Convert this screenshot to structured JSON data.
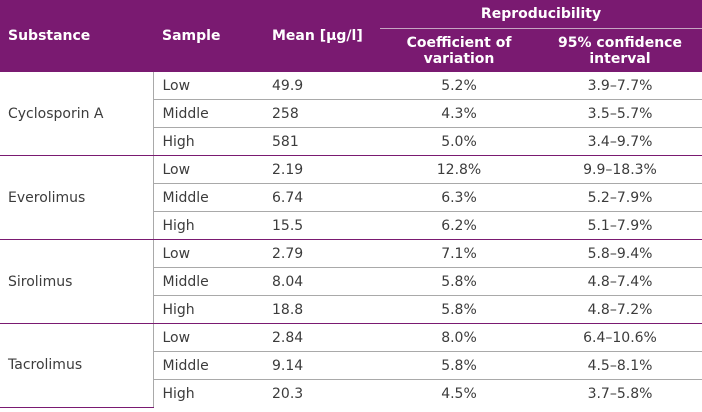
{
  "header": {
    "substance": "Substance",
    "sample": "Sample",
    "mean": "Mean [µg/l]",
    "reproducibility": "Reproducibility",
    "cv": "Coefficient of variation",
    "ci": "95% confidence interval"
  },
  "groups": [
    {
      "substance": "Cyclosporin A",
      "rows": [
        {
          "sample": "Low",
          "mean": "49.9",
          "cv": "5.2%",
          "ci": "3.9–7.7%"
        },
        {
          "sample": "Middle",
          "mean": "258",
          "cv": "4.3%",
          "ci": "3.5–5.7%"
        },
        {
          "sample": "High",
          "mean": "581",
          "cv": "5.0%",
          "ci": "3.4–9.7%"
        }
      ]
    },
    {
      "substance": "Everolimus",
      "rows": [
        {
          "sample": "Low",
          "mean": "2.19",
          "cv": "12.8%",
          "ci": "9.9–18.3%"
        },
        {
          "sample": "Middle",
          "mean": "6.74",
          "cv": "6.3%",
          "ci": "5.2–7.9%"
        },
        {
          "sample": "High",
          "mean": "15.5",
          "cv": "6.2%",
          "ci": "5.1–7.9%"
        }
      ]
    },
    {
      "substance": "Sirolimus",
      "rows": [
        {
          "sample": "Low",
          "mean": "2.79",
          "cv": "7.1%",
          "ci": "5.8–9.4%"
        },
        {
          "sample": "Middle",
          "mean": "8.04",
          "cv": "5.8%",
          "ci": "4.8–7.4%"
        },
        {
          "sample": "High",
          "mean": "18.8",
          "cv": "5.8%",
          "ci": "4.8–7.2%"
        }
      ]
    },
    {
      "substance": "Tacrolimus",
      "rows": [
        {
          "sample": "Low",
          "mean": "2.84",
          "cv": "8.0%",
          "ci": "6.4–10.6%"
        },
        {
          "sample": "Middle",
          "mean": "9.14",
          "cv": "5.8%",
          "ci": "4.5–8.1%"
        },
        {
          "sample": "High",
          "mean": "20.3",
          "cv": "4.5%",
          "ci": "3.7–5.8%"
        }
      ]
    }
  ],
  "colors": {
    "header_bg": "#7a1a71",
    "header_text": "#ffffff",
    "body_text": "#3c3c3c",
    "row_divider": "#a9a9a9"
  }
}
